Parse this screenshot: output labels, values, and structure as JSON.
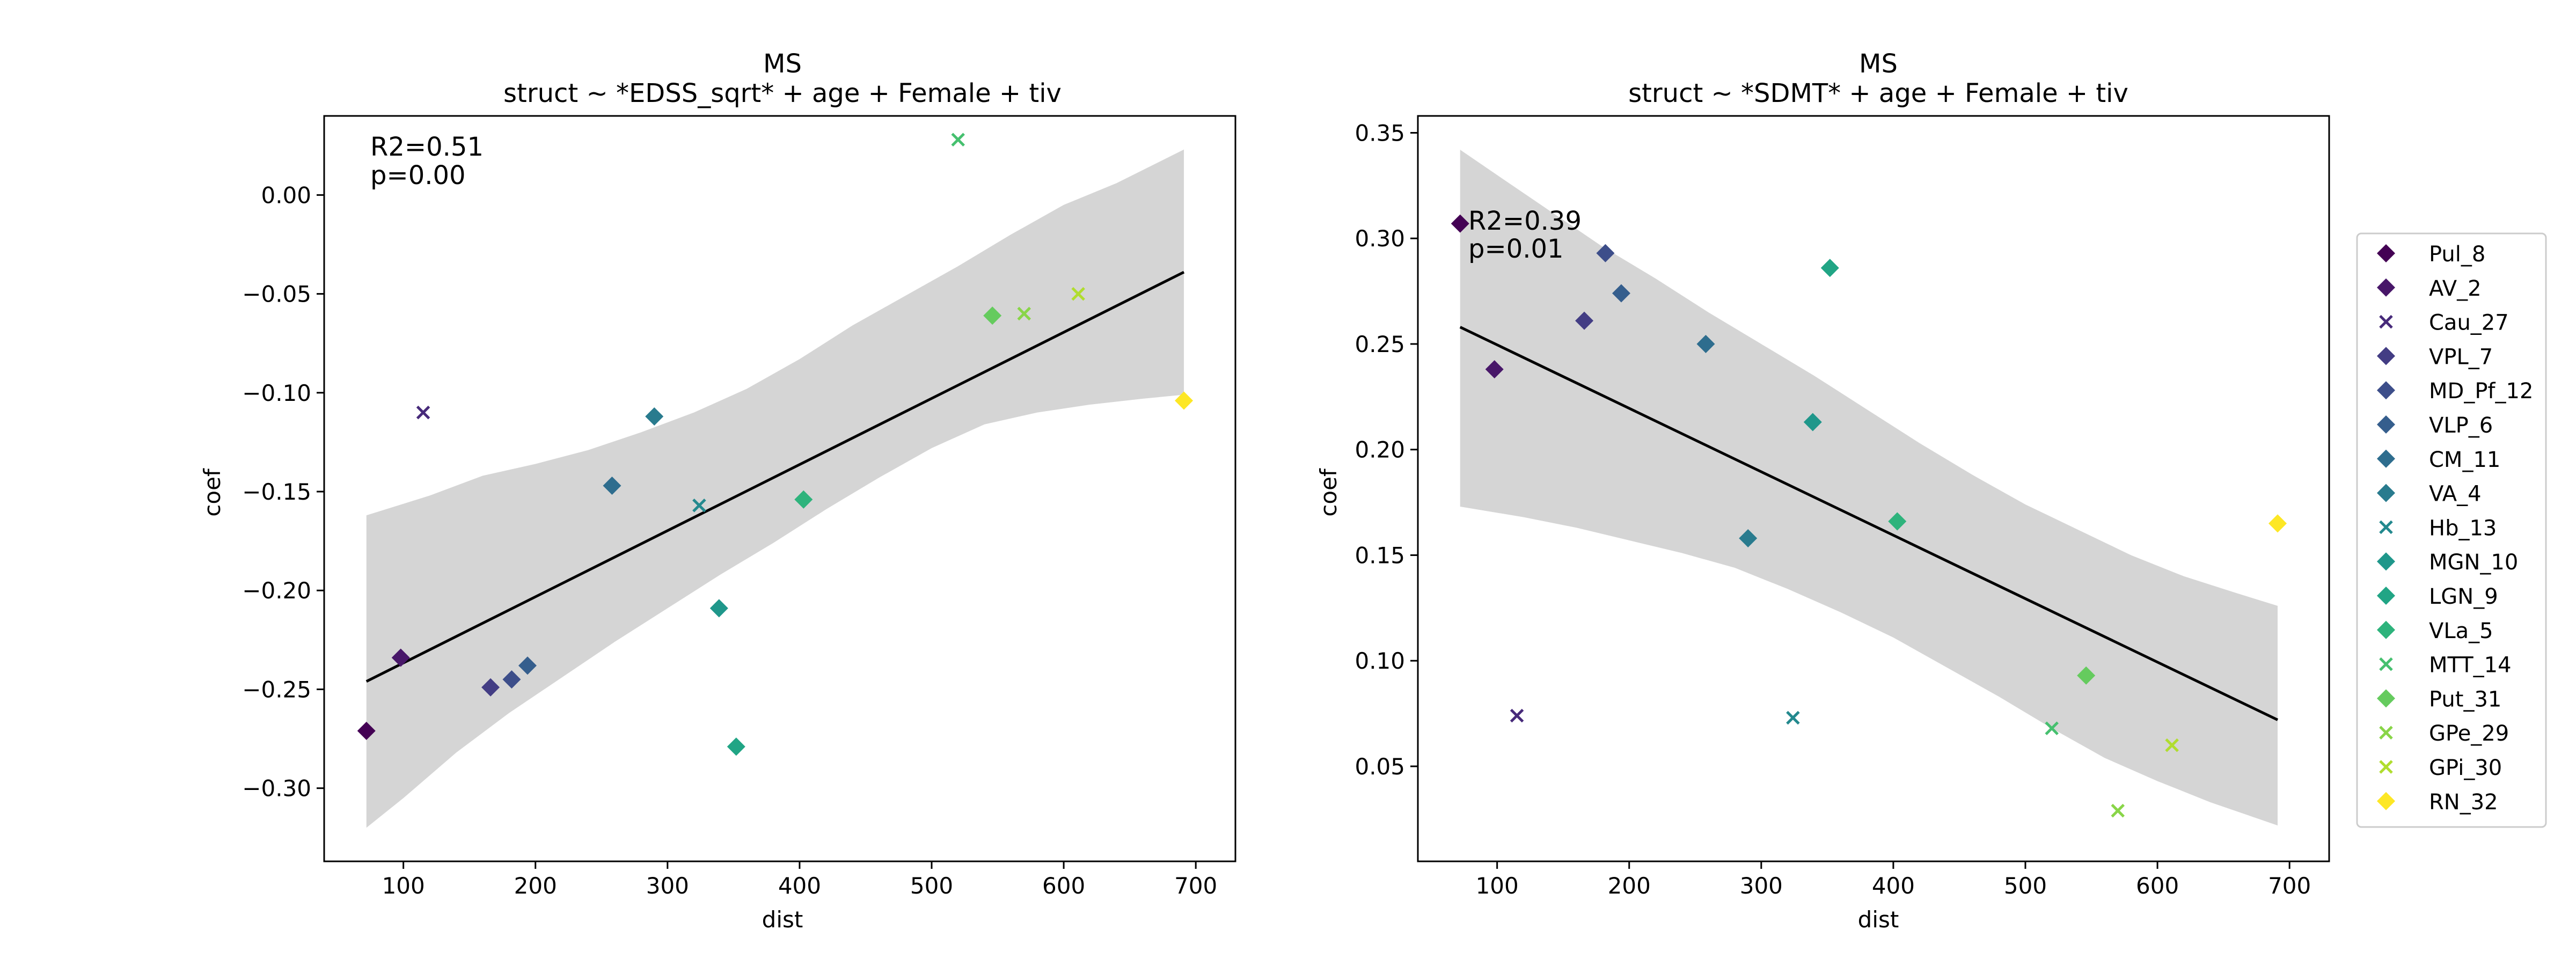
{
  "chart_data": [
    {
      "type": "scatter",
      "title": "MS",
      "subtitle": "struct ~ *EDSS_sqrt* + age + Female + tiv",
      "xlabel": "dist",
      "ylabel": "coef",
      "xlim": [
        40,
        730
      ],
      "ylim": [
        -0.337,
        0.04
      ],
      "xticks": [
        100,
        200,
        300,
        400,
        500,
        600,
        700
      ],
      "yticks": [
        -0.3,
        -0.25,
        -0.2,
        -0.15,
        -0.1,
        -0.05,
        0.0
      ],
      "ytick_labels": [
        "−0.30",
        "−0.25",
        "−0.20",
        "−0.15",
        "−0.10",
        "−0.05",
        "0.00"
      ],
      "annotation": [
        "R2=0.51",
        "p=0.00"
      ],
      "regression_line": [
        [
          72,
          -0.246
        ],
        [
          691,
          -0.039
        ]
      ],
      "confidence_band": {
        "upper": [
          [
            72,
            -0.162
          ],
          [
            120,
            -0.152
          ],
          [
            160,
            -0.142
          ],
          [
            200,
            -0.136
          ],
          [
            240,
            -0.129
          ],
          [
            280,
            -0.12
          ],
          [
            320,
            -0.11
          ],
          [
            360,
            -0.098
          ],
          [
            400,
            -0.083
          ],
          [
            440,
            -0.066
          ],
          [
            480,
            -0.051
          ],
          [
            520,
            -0.036
          ],
          [
            560,
            -0.02
          ],
          [
            600,
            -0.005
          ],
          [
            640,
            0.006
          ],
          [
            691,
            0.023
          ]
        ],
        "lower": [
          [
            72,
            -0.32
          ],
          [
            100,
            -0.305
          ],
          [
            140,
            -0.282
          ],
          [
            180,
            -0.262
          ],
          [
            220,
            -0.244
          ],
          [
            260,
            -0.226
          ],
          [
            300,
            -0.209
          ],
          [
            340,
            -0.192
          ],
          [
            380,
            -0.176
          ],
          [
            420,
            -0.159
          ],
          [
            460,
            -0.143
          ],
          [
            500,
            -0.128
          ],
          [
            540,
            -0.116
          ],
          [
            580,
            -0.11
          ],
          [
            620,
            -0.106
          ],
          [
            660,
            -0.103
          ],
          [
            691,
            -0.101
          ]
        ]
      },
      "points": [
        {
          "name": "Pul_8",
          "x": 72,
          "y": -0.271
        },
        {
          "name": "AV_2",
          "x": 98,
          "y": -0.234
        },
        {
          "name": "Cau_27",
          "x": 115,
          "y": -0.11
        },
        {
          "name": "VPL_7",
          "x": 166,
          "y": -0.249
        },
        {
          "name": "MD_Pf_12",
          "x": 182,
          "y": -0.245
        },
        {
          "name": "VLP_6",
          "x": 194,
          "y": -0.238
        },
        {
          "name": "CM_11",
          "x": 258,
          "y": -0.147
        },
        {
          "name": "VA_4",
          "x": 290,
          "y": -0.112
        },
        {
          "name": "Hb_13",
          "x": 324,
          "y": -0.157
        },
        {
          "name": "MGN_10",
          "x": 339,
          "y": -0.209
        },
        {
          "name": "LGN_9",
          "x": 352,
          "y": -0.279
        },
        {
          "name": "VLa_5",
          "x": 403,
          "y": -0.154
        },
        {
          "name": "MTT_14",
          "x": 520,
          "y": 0.028
        },
        {
          "name": "Put_31",
          "x": 546,
          "y": -0.061
        },
        {
          "name": "GPe_29",
          "x": 570,
          "y": -0.06
        },
        {
          "name": "GPi_30",
          "x": 611,
          "y": -0.05
        },
        {
          "name": "RN_32",
          "x": 691,
          "y": -0.104
        }
      ]
    },
    {
      "type": "scatter",
      "title": "MS",
      "subtitle": "struct ~ *SDMT* + age + Female + tiv",
      "xlabel": "dist",
      "ylabel": "coef",
      "xlim": [
        40,
        730
      ],
      "ylim": [
        0.005,
        0.358
      ],
      "xticks": [
        100,
        200,
        300,
        400,
        500,
        600,
        700
      ],
      "yticks": [
        0.05,
        0.1,
        0.15,
        0.2,
        0.25,
        0.3,
        0.35
      ],
      "ytick_labels": [
        "0.05",
        "0.10",
        "0.15",
        "0.20",
        "0.25",
        "0.30",
        "0.35"
      ],
      "annotation": [
        "R2=0.39",
        "p=0.01"
      ],
      "regression_line": [
        [
          72,
          0.258
        ],
        [
          691,
          0.072
        ]
      ],
      "confidence_band": {
        "upper": [
          [
            72,
            0.342
          ],
          [
            100,
            0.33
          ],
          [
            140,
            0.313
          ],
          [
            180,
            0.296
          ],
          [
            220,
            0.281
          ],
          [
            260,
            0.265
          ],
          [
            300,
            0.25
          ],
          [
            340,
            0.235
          ],
          [
            380,
            0.219
          ],
          [
            420,
            0.203
          ],
          [
            460,
            0.188
          ],
          [
            500,
            0.174
          ],
          [
            540,
            0.162
          ],
          [
            580,
            0.15
          ],
          [
            620,
            0.14
          ],
          [
            660,
            0.132
          ],
          [
            691,
            0.126
          ]
        ],
        "lower": [
          [
            72,
            0.173
          ],
          [
            120,
            0.168
          ],
          [
            160,
            0.163
          ],
          [
            200,
            0.157
          ],
          [
            240,
            0.151
          ],
          [
            280,
            0.144
          ],
          [
            320,
            0.134
          ],
          [
            360,
            0.123
          ],
          [
            400,
            0.111
          ],
          [
            440,
            0.097
          ],
          [
            480,
            0.083
          ],
          [
            520,
            0.068
          ],
          [
            560,
            0.054
          ],
          [
            600,
            0.043
          ],
          [
            640,
            0.033
          ],
          [
            691,
            0.022
          ]
        ]
      },
      "points": [
        {
          "name": "Pul_8",
          "x": 72,
          "y": 0.307
        },
        {
          "name": "AV_2",
          "x": 98,
          "y": 0.238
        },
        {
          "name": "Cau_27",
          "x": 115,
          "y": 0.074
        },
        {
          "name": "VPL_7",
          "x": 166,
          "y": 0.261
        },
        {
          "name": "MD_Pf_12",
          "x": 182,
          "y": 0.293
        },
        {
          "name": "VLP_6",
          "x": 194,
          "y": 0.274
        },
        {
          "name": "CM_11",
          "x": 258,
          "y": 0.25
        },
        {
          "name": "VA_4",
          "x": 290,
          "y": 0.158
        },
        {
          "name": "Hb_13",
          "x": 324,
          "y": 0.073
        },
        {
          "name": "MGN_10",
          "x": 339,
          "y": 0.213
        },
        {
          "name": "LGN_9",
          "x": 352,
          "y": 0.286
        },
        {
          "name": "VLa_5",
          "x": 403,
          "y": 0.166
        },
        {
          "name": "MTT_14",
          "x": 520,
          "y": 0.068
        },
        {
          "name": "Put_31",
          "x": 546,
          "y": 0.093
        },
        {
          "name": "GPe_29",
          "x": 570,
          "y": 0.029
        },
        {
          "name": "GPi_30",
          "x": 611,
          "y": 0.06
        },
        {
          "name": "RN_32",
          "x": 691,
          "y": 0.165
        }
      ]
    }
  ],
  "legend": {
    "placement": "right",
    "entries": [
      {
        "name": "Pul_8",
        "marker": "diamond",
        "color": "#440154"
      },
      {
        "name": "AV_2",
        "marker": "diamond",
        "color": "#481769"
      },
      {
        "name": "Cau_27",
        "marker": "x",
        "color": "#472a7a"
      },
      {
        "name": "VPL_7",
        "marker": "diamond",
        "color": "#433d84"
      },
      {
        "name": "MD_Pf_12",
        "marker": "diamond",
        "color": "#3d4e8a"
      },
      {
        "name": "VLP_6",
        "marker": "diamond",
        "color": "#355e8d"
      },
      {
        "name": "CM_11",
        "marker": "diamond",
        "color": "#2e6d8e"
      },
      {
        "name": "VA_4",
        "marker": "diamond",
        "color": "#297b8e"
      },
      {
        "name": "Hb_13",
        "marker": "x",
        "color": "#23898e"
      },
      {
        "name": "MGN_10",
        "marker": "diamond",
        "color": "#1f978b"
      },
      {
        "name": "LGN_9",
        "marker": "diamond",
        "color": "#21a585"
      },
      {
        "name": "VLa_5",
        "marker": "diamond",
        "color": "#2eb37c"
      },
      {
        "name": "MTT_14",
        "marker": "x",
        "color": "#46c06f"
      },
      {
        "name": "Put_31",
        "marker": "diamond",
        "color": "#65cb5e"
      },
      {
        "name": "GPe_29",
        "marker": "x",
        "color": "#89d548"
      },
      {
        "name": "GPi_30",
        "marker": "x",
        "color": "#b0dd2f"
      },
      {
        "name": "RN_32",
        "marker": "diamond",
        "color": "#fde725"
      }
    ]
  },
  "colors": {
    "band": "#d3d3d3",
    "line": "#000000",
    "axes": "#000000",
    "legend_border": "#cccccc"
  }
}
